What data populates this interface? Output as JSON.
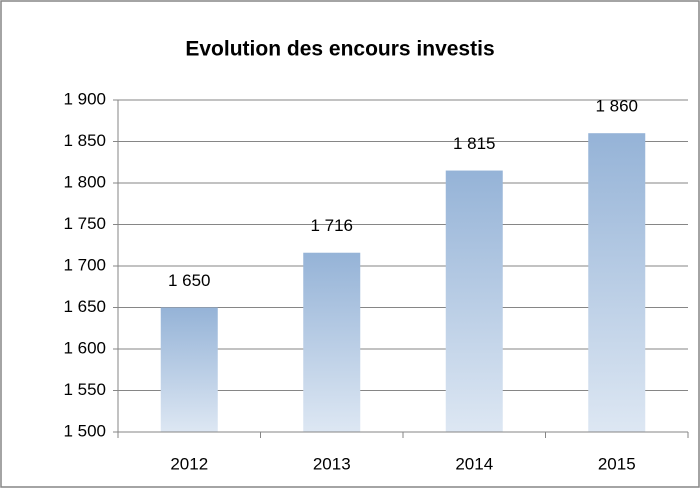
{
  "chart_data": {
    "type": "bar",
    "title": "Evolution des encours investis",
    "categories": [
      "2012",
      "2013",
      "2014",
      "2015"
    ],
    "values": [
      1650,
      1716,
      1815,
      1860
    ],
    "value_labels": [
      "1 650",
      "1 716",
      "1 815",
      "1 860"
    ],
    "color": "#95b3d7",
    "ylim": [
      1500,
      1900
    ],
    "yticks": [
      {
        "value": 1500,
        "label": "1 500"
      },
      {
        "value": 1550,
        "label": "1 550"
      },
      {
        "value": 1600,
        "label": "1 600"
      },
      {
        "value": 1650,
        "label": "1 650"
      },
      {
        "value": 1700,
        "label": "1 700"
      },
      {
        "value": 1750,
        "label": "1 750"
      },
      {
        "value": 1800,
        "label": "1 800"
      },
      {
        "value": 1850,
        "label": "1 850"
      },
      {
        "value": 1900,
        "label": "1 900"
      }
    ],
    "grid": true
  }
}
